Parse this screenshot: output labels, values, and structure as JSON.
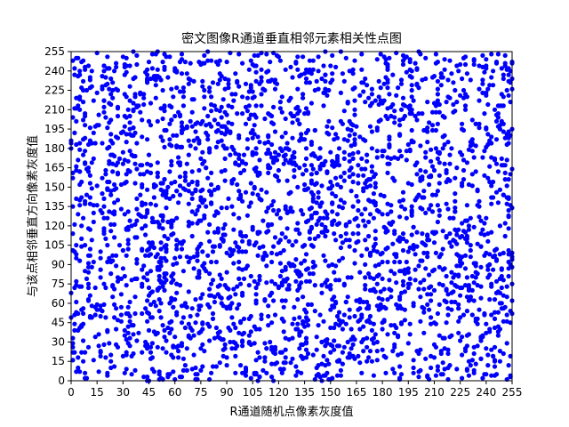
{
  "chart_data": {
    "type": "scatter",
    "title": "密文图像R通道垂直相邻元素相关性点图",
    "xlabel": "R通道随机点像素灰度值",
    "ylabel": "与该点相邻垂直方向像素灰度值",
    "xlim": [
      0,
      255
    ],
    "ylim": [
      0,
      255
    ],
    "xticks": [
      0,
      15,
      30,
      45,
      60,
      75,
      90,
      105,
      120,
      135,
      150,
      165,
      180,
      195,
      210,
      225,
      240,
      255
    ],
    "yticks": [
      0,
      15,
      30,
      45,
      60,
      75,
      90,
      105,
      120,
      135,
      150,
      165,
      180,
      195,
      210,
      225,
      240,
      255
    ],
    "grid": false,
    "marker_color": "#0000ff",
    "distribution": "uniform random over [0,255] x [0,255] (encrypted image, no correlation)",
    "point_count": 3000,
    "series": [
      {
        "points": [
          [
            3,
            250
          ],
          [
            12,
            228
          ],
          [
            25,
            240
          ],
          [
            38,
            212
          ],
          [
            52,
            233
          ],
          [
            66,
            247
          ],
          [
            79,
            205
          ],
          [
            93,
            222
          ],
          [
            107,
            244
          ],
          [
            121,
            216
          ],
          [
            135,
            238
          ],
          [
            149,
            201
          ],
          [
            163,
            226
          ],
          [
            177,
            249
          ],
          [
            191,
            210
          ],
          [
            205,
            234
          ],
          [
            219,
            219
          ],
          [
            233,
            245
          ],
          [
            247,
            207
          ],
          [
            8,
            188
          ],
          [
            22,
            170
          ],
          [
            36,
            196
          ],
          [
            50,
            158
          ],
          [
            64,
            181
          ],
          [
            78,
            165
          ],
          [
            92,
            192
          ],
          [
            106,
            149
          ],
          [
            120,
            175
          ],
          [
            134,
            187
          ],
          [
            148,
            161
          ],
          [
            162,
            199
          ],
          [
            176,
            153
          ],
          [
            190,
            178
          ],
          [
            204,
            194
          ],
          [
            218,
            156
          ],
          [
            232,
            183
          ],
          [
            246,
            168
          ],
          [
            5,
            140
          ],
          [
            19,
            118
          ],
          [
            33,
            131
          ],
          [
            47,
            107
          ],
          [
            61,
            126
          ],
          [
            75,
            142
          ],
          [
            89,
            113
          ],
          [
            103,
            135
          ],
          [
            117,
            104
          ],
          [
            131,
            122
          ],
          [
            145,
            138
          ],
          [
            159,
            109
          ],
          [
            173,
            129
          ],
          [
            187,
            116
          ],
          [
            201,
            144
          ],
          [
            215,
            102
          ],
          [
            229,
            124
          ],
          [
            243,
            137
          ],
          [
            10,
            88
          ],
          [
            24,
            65
          ],
          [
            38,
            79
          ],
          [
            52,
            95
          ],
          [
            66,
            58
          ],
          [
            80,
            83
          ],
          [
            94,
            71
          ],
          [
            108,
            97
          ],
          [
            122,
            62
          ],
          [
            136,
            86
          ],
          [
            150,
            74
          ],
          [
            164,
            91
          ],
          [
            178,
            55
          ],
          [
            192,
            77
          ],
          [
            206,
            99
          ],
          [
            220,
            68
          ],
          [
            234,
            84
          ],
          [
            248,
            60
          ],
          [
            6,
            42
          ],
          [
            20,
            18
          ],
          [
            34,
            33
          ],
          [
            48,
            7
          ],
          [
            62,
            27
          ],
          [
            76,
            45
          ],
          [
            90,
            12
          ],
          [
            104,
            38
          ],
          [
            118,
            21
          ],
          [
            132,
            49
          ],
          [
            146,
            4
          ],
          [
            160,
            30
          ],
          [
            174,
            15
          ],
          [
            188,
            41
          ],
          [
            202,
            24
          ],
          [
            216,
            9
          ],
          [
            230,
            36
          ],
          [
            244,
            19
          ],
          [
            254,
            3
          ]
        ]
      }
    ]
  }
}
